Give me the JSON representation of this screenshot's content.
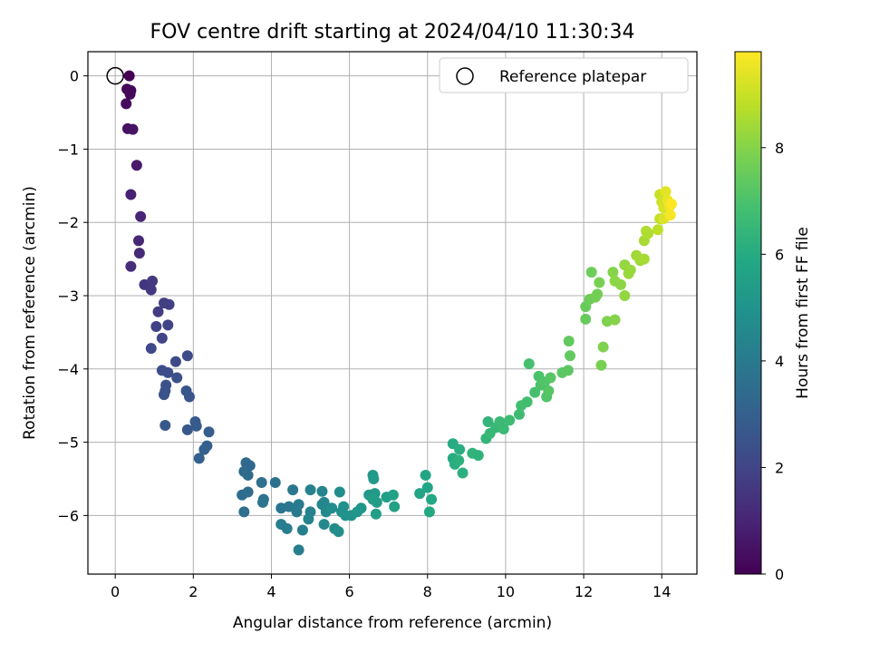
{
  "chart_data": {
    "type": "scatter",
    "title": "FOV centre drift starting at 2024/04/10 11:30:34",
    "xlabel": "Angular distance from reference (arcmin)",
    "ylabel": "Rotation from reference (arcmin)",
    "xlim": [
      -0.7,
      14.9
    ],
    "ylim": [
      -6.8,
      0.33
    ],
    "xticks": [
      0,
      2,
      4,
      6,
      8,
      10,
      12,
      14
    ],
    "xtick_labels": [
      "0",
      "2",
      "4",
      "6",
      "8",
      "10",
      "12",
      "14"
    ],
    "yticks": [
      0,
      -1,
      -2,
      -3,
      -4,
      -5,
      -6
    ],
    "ytick_labels": [
      "0",
      "−1",
      "−2",
      "−3",
      "−4",
      "−5",
      "−6"
    ],
    "grid": true,
    "legend": {
      "placement": "top-right",
      "entries": [
        "Reference platepar"
      ]
    },
    "reference_point": {
      "name": "Reference platepar",
      "x": 0,
      "y": 0,
      "marker": "open-circle"
    },
    "colorbar": {
      "label": "Hours from first FF file",
      "colormap": "viridis",
      "range": [
        0,
        9.8
      ],
      "ticks": [
        0,
        2,
        4,
        6,
        8
      ],
      "tick_labels": [
        "0",
        "2",
        "4",
        "6",
        "8"
      ]
    },
    "series": [
      {
        "color_by": "hours",
        "points": [
          [
            0.36,
            0.0,
            0.0
          ],
          [
            0.3,
            -0.18,
            0.1
          ],
          [
            0.4,
            -0.2,
            0.15
          ],
          [
            0.38,
            -0.25,
            0.2
          ],
          [
            0.28,
            -0.38,
            0.3
          ],
          [
            0.32,
            -0.72,
            0.4
          ],
          [
            0.45,
            -0.73,
            0.5
          ],
          [
            0.55,
            -1.22,
            0.7
          ],
          [
            0.4,
            -1.62,
            0.9
          ],
          [
            0.65,
            -1.92,
            1.0
          ],
          [
            0.6,
            -2.25,
            1.1
          ],
          [
            0.62,
            -2.42,
            1.2
          ],
          [
            0.4,
            -2.6,
            1.3
          ],
          [
            0.75,
            -2.85,
            1.5
          ],
          [
            0.95,
            -2.8,
            1.6
          ],
          [
            0.92,
            -2.92,
            1.6
          ],
          [
            1.1,
            -3.22,
            1.7
          ],
          [
            1.25,
            -3.1,
            1.8
          ],
          [
            1.38,
            -3.12,
            1.8
          ],
          [
            1.05,
            -3.42,
            1.9
          ],
          [
            1.35,
            -3.4,
            2.0
          ],
          [
            1.2,
            -3.58,
            2.0
          ],
          [
            0.92,
            -3.72,
            2.1
          ],
          [
            1.55,
            -3.9,
            2.2
          ],
          [
            1.85,
            -3.82,
            2.2
          ],
          [
            1.2,
            -4.02,
            2.3
          ],
          [
            1.35,
            -4.05,
            2.3
          ],
          [
            1.58,
            -4.12,
            2.4
          ],
          [
            1.3,
            -4.22,
            2.4
          ],
          [
            1.28,
            -4.3,
            2.5
          ],
          [
            1.25,
            -4.35,
            2.5
          ],
          [
            1.82,
            -4.3,
            2.6
          ],
          [
            1.9,
            -4.38,
            2.6
          ],
          [
            1.28,
            -4.77,
            2.7
          ],
          [
            1.85,
            -4.83,
            2.7
          ],
          [
            2.05,
            -4.72,
            2.8
          ],
          [
            2.08,
            -4.78,
            2.8
          ],
          [
            2.4,
            -4.86,
            2.9
          ],
          [
            2.35,
            -5.05,
            2.9
          ],
          [
            2.28,
            -5.1,
            3.0
          ],
          [
            2.15,
            -5.22,
            3.0
          ],
          [
            3.35,
            -5.28,
            3.3
          ],
          [
            3.45,
            -5.32,
            3.3
          ],
          [
            3.3,
            -5.4,
            3.4
          ],
          [
            3.4,
            -5.45,
            3.4
          ],
          [
            3.25,
            -5.72,
            3.5
          ],
          [
            3.4,
            -5.68,
            3.5
          ],
          [
            3.3,
            -5.95,
            3.6
          ],
          [
            3.75,
            -5.55,
            3.6
          ],
          [
            4.1,
            -5.55,
            3.7
          ],
          [
            3.8,
            -5.78,
            3.7
          ],
          [
            3.78,
            -5.82,
            3.8
          ],
          [
            4.25,
            -5.9,
            3.8
          ],
          [
            4.45,
            -5.88,
            3.9
          ],
          [
            4.55,
            -5.65,
            3.9
          ],
          [
            4.7,
            -5.85,
            4.0
          ],
          [
            4.65,
            -5.95,
            4.0
          ],
          [
            4.25,
            -6.12,
            4.1
          ],
          [
            4.4,
            -6.18,
            4.1
          ],
          [
            4.8,
            -6.2,
            4.2
          ],
          [
            4.7,
            -6.47,
            4.2
          ],
          [
            5.0,
            -5.65,
            4.3
          ],
          [
            5.0,
            -5.95,
            4.3
          ],
          [
            4.95,
            -6.05,
            4.4
          ],
          [
            5.3,
            -5.67,
            4.4
          ],
          [
            5.35,
            -5.82,
            4.5
          ],
          [
            5.3,
            -5.85,
            4.5
          ],
          [
            5.4,
            -5.95,
            4.6
          ],
          [
            5.35,
            -6.12,
            4.6
          ],
          [
            5.55,
            -5.9,
            4.7
          ],
          [
            5.62,
            -6.18,
            4.7
          ],
          [
            5.72,
            -6.22,
            4.8
          ],
          [
            5.75,
            -5.68,
            4.8
          ],
          [
            5.85,
            -5.88,
            4.9
          ],
          [
            5.8,
            -5.95,
            4.9
          ],
          [
            5.9,
            -6.0,
            5.0
          ],
          [
            6.05,
            -6.0,
            5.0
          ],
          [
            6.2,
            -5.95,
            5.1
          ],
          [
            6.3,
            -5.9,
            5.1
          ],
          [
            6.5,
            -5.72,
            5.2
          ],
          [
            6.6,
            -5.45,
            5.2
          ],
          [
            6.62,
            -5.5,
            5.3
          ],
          [
            6.65,
            -5.7,
            5.3
          ],
          [
            6.6,
            -5.78,
            5.4
          ],
          [
            6.7,
            -5.82,
            5.4
          ],
          [
            6.68,
            -5.98,
            5.5
          ],
          [
            6.95,
            -5.75,
            5.5
          ],
          [
            7.12,
            -5.72,
            5.6
          ],
          [
            7.15,
            -5.88,
            5.6
          ],
          [
            7.8,
            -5.7,
            5.7
          ],
          [
            7.95,
            -5.45,
            5.8
          ],
          [
            8.0,
            -5.62,
            5.8
          ],
          [
            8.1,
            -5.78,
            5.9
          ],
          [
            8.05,
            -5.95,
            5.9
          ],
          [
            8.65,
            -5.02,
            6.0
          ],
          [
            8.65,
            -5.22,
            6.0
          ],
          [
            8.7,
            -5.3,
            6.1
          ],
          [
            8.82,
            -5.1,
            6.1
          ],
          [
            8.9,
            -5.42,
            6.2
          ],
          [
            8.8,
            -5.25,
            6.2
          ],
          [
            9.15,
            -5.15,
            6.3
          ],
          [
            9.3,
            -5.18,
            6.3
          ],
          [
            9.5,
            -4.95,
            6.4
          ],
          [
            9.55,
            -4.72,
            6.4
          ],
          [
            9.6,
            -4.88,
            6.5
          ],
          [
            9.75,
            -4.8,
            6.5
          ],
          [
            9.85,
            -4.72,
            6.6
          ],
          [
            9.95,
            -4.82,
            6.6
          ],
          [
            10.1,
            -4.7,
            6.7
          ],
          [
            10.35,
            -4.62,
            6.7
          ],
          [
            10.4,
            -4.5,
            6.8
          ],
          [
            10.55,
            -4.45,
            6.8
          ],
          [
            10.6,
            -3.93,
            6.9
          ],
          [
            10.75,
            -4.32,
            6.9
          ],
          [
            10.85,
            -4.1,
            7.0
          ],
          [
            10.9,
            -4.22,
            7.0
          ],
          [
            11.0,
            -4.18,
            7.1
          ],
          [
            11.05,
            -4.38,
            7.1
          ],
          [
            11.1,
            -4.3,
            7.2
          ],
          [
            11.15,
            -4.12,
            7.2
          ],
          [
            11.45,
            -4.05,
            7.3
          ],
          [
            11.6,
            -4.02,
            7.3
          ],
          [
            11.62,
            -3.62,
            7.4
          ],
          [
            11.65,
            -3.82,
            7.4
          ],
          [
            12.05,
            -3.15,
            7.5
          ],
          [
            12.05,
            -3.32,
            7.5
          ],
          [
            12.15,
            -3.05,
            7.6
          ],
          [
            12.2,
            -2.68,
            7.6
          ],
          [
            12.3,
            -3.02,
            7.7
          ],
          [
            12.35,
            -2.98,
            7.7
          ],
          [
            12.4,
            -2.82,
            7.8
          ],
          [
            12.45,
            -3.95,
            7.8
          ],
          [
            12.5,
            -3.7,
            7.9
          ],
          [
            12.6,
            -3.35,
            7.9
          ],
          [
            12.8,
            -3.33,
            8.0
          ],
          [
            12.75,
            -2.68,
            8.0
          ],
          [
            12.8,
            -2.8,
            8.1
          ],
          [
            12.95,
            -2.85,
            8.1
          ],
          [
            13.05,
            -3.0,
            8.2
          ],
          [
            13.05,
            -2.58,
            8.2
          ],
          [
            13.15,
            -2.7,
            8.3
          ],
          [
            13.2,
            -2.65,
            8.3
          ],
          [
            13.35,
            -2.45,
            8.4
          ],
          [
            13.45,
            -2.52,
            8.4
          ],
          [
            13.55,
            -2.25,
            8.5
          ],
          [
            13.55,
            -2.5,
            8.5
          ],
          [
            13.6,
            -2.12,
            8.6
          ],
          [
            13.65,
            -2.15,
            8.6
          ],
          [
            13.9,
            -2.1,
            8.8
          ],
          [
            13.95,
            -1.95,
            8.9
          ],
          [
            13.95,
            -1.62,
            9.0
          ],
          [
            14.0,
            -1.72,
            9.1
          ],
          [
            14.05,
            -1.8,
            9.2
          ],
          [
            14.05,
            -1.95,
            9.3
          ],
          [
            14.1,
            -1.58,
            9.4
          ],
          [
            14.15,
            -1.7,
            9.5
          ],
          [
            14.2,
            -1.78,
            9.6
          ],
          [
            14.22,
            -1.9,
            9.7
          ],
          [
            14.25,
            -1.75,
            9.8
          ]
        ]
      }
    ]
  }
}
